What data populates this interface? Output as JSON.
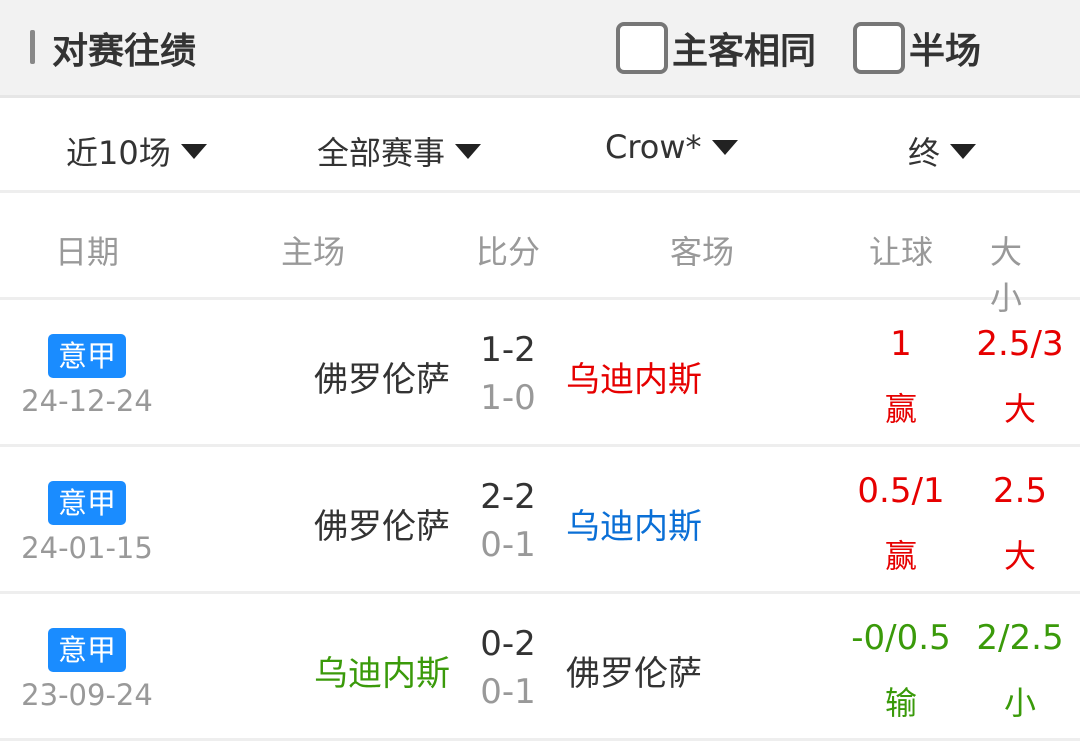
{
  "header": {
    "title": "对赛往绩",
    "same_home_away": "主客相同",
    "half_time": "半场"
  },
  "filters": [
    "近10场",
    "全部赛事",
    "Crow*",
    "终"
  ],
  "columns": [
    "日期",
    "主场",
    "比分",
    "客场",
    "让球",
    "大小"
  ],
  "colors": {
    "red": "#e60000",
    "blue": "#0a6fd6",
    "green": "#3a9a0a",
    "dark": "#333333",
    "badge": "#1a8cff"
  },
  "matches": [
    {
      "league": "意甲",
      "date": "24-12-24",
      "home": "佛罗伦萨",
      "home_color": "#333333",
      "score": "1-2",
      "half": "1-0",
      "away": "乌迪内斯",
      "away_color": "#e60000",
      "handicap": "1",
      "handicap_result": "赢",
      "handicap_color": "#e60000",
      "ou": "2.5/3",
      "ou_result": "大",
      "ou_color": "#e60000"
    },
    {
      "league": "意甲",
      "date": "24-01-15",
      "home": "佛罗伦萨",
      "home_color": "#333333",
      "score": "2-2",
      "half": "0-1",
      "away": "乌迪内斯",
      "away_color": "#0a6fd6",
      "handicap": "0.5/1",
      "handicap_result": "赢",
      "handicap_color": "#e60000",
      "ou": "2.5",
      "ou_result": "大",
      "ou_color": "#e60000"
    },
    {
      "league": "意甲",
      "date": "23-09-24",
      "home": "乌迪内斯",
      "home_color": "#3a9a0a",
      "score": "0-2",
      "half": "0-1",
      "away": "佛罗伦萨",
      "away_color": "#333333",
      "handicap": "-0/0.5",
      "handicap_result": "输",
      "handicap_color": "#3a9a0a",
      "ou": "2/2.5",
      "ou_result": "小",
      "ou_color": "#3a9a0a"
    }
  ]
}
